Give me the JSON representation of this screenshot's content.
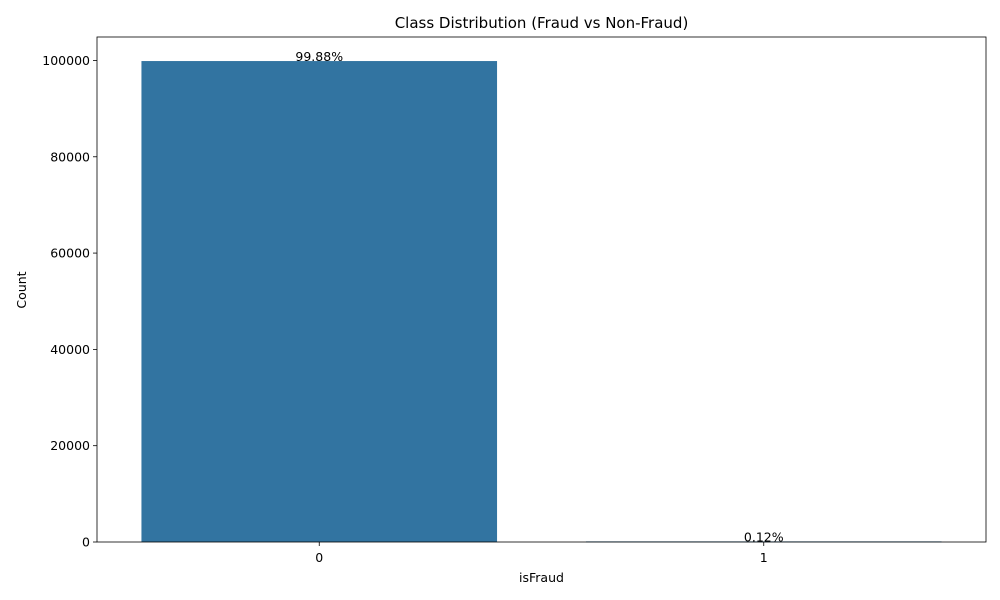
{
  "chart_data": {
    "type": "bar",
    "title": "Class Distribution (Fraud vs Non-Fraud)",
    "xlabel": "isFraud",
    "ylabel": "Count",
    "categories": [
      "0",
      "1"
    ],
    "values": [
      99880,
      120
    ],
    "bar_labels": [
      "99.88%",
      "0.12%"
    ],
    "yticks": [
      0,
      20000,
      40000,
      60000,
      80000,
      100000
    ],
    "ytick_labels": [
      "0",
      "20000",
      "40000",
      "60000",
      "80000",
      "100000"
    ],
    "ylim": [
      0,
      104874
    ],
    "bar_color": "#3274a1",
    "grid": false,
    "legend": false
  }
}
